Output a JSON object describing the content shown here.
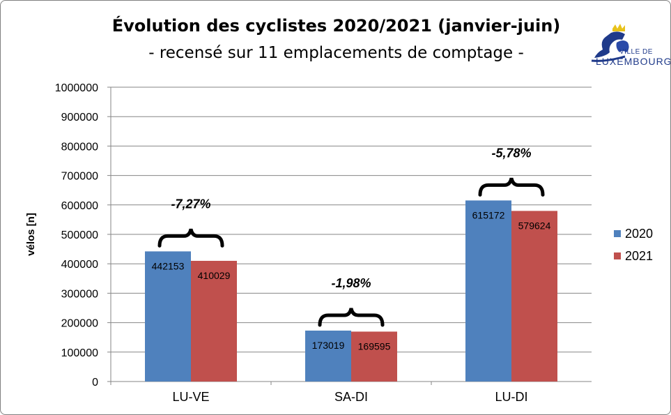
{
  "chart_data": {
    "type": "bar",
    "title": "Évolution des cyclistes 2020/2021 (janvier-juin)",
    "subtitle": "- recensé sur 11 emplacements de comptage -",
    "ylabel": "vélos [n]",
    "xlabel": "",
    "categories": [
      "LU-VE",
      "SA-DI",
      "LU-DI"
    ],
    "series": [
      {
        "name": "2020",
        "values": [
          442153,
          173019,
          615172
        ],
        "color": "#4f81bd"
      },
      {
        "name": "2021",
        "values": [
          410029,
          169595,
          579624
        ],
        "color": "#c0504d"
      }
    ],
    "ylim": [
      0,
      1000000
    ],
    "yticks": [
      0,
      100000,
      200000,
      300000,
      400000,
      500000,
      600000,
      700000,
      800000,
      900000,
      1000000
    ],
    "grid": true,
    "legend_position": "right",
    "annotations": [
      "-7,27%",
      "-1,98%",
      "-5,78%"
    ]
  },
  "logo": {
    "line1": "VILLE DE",
    "line2": "LUXEMBOURG"
  }
}
